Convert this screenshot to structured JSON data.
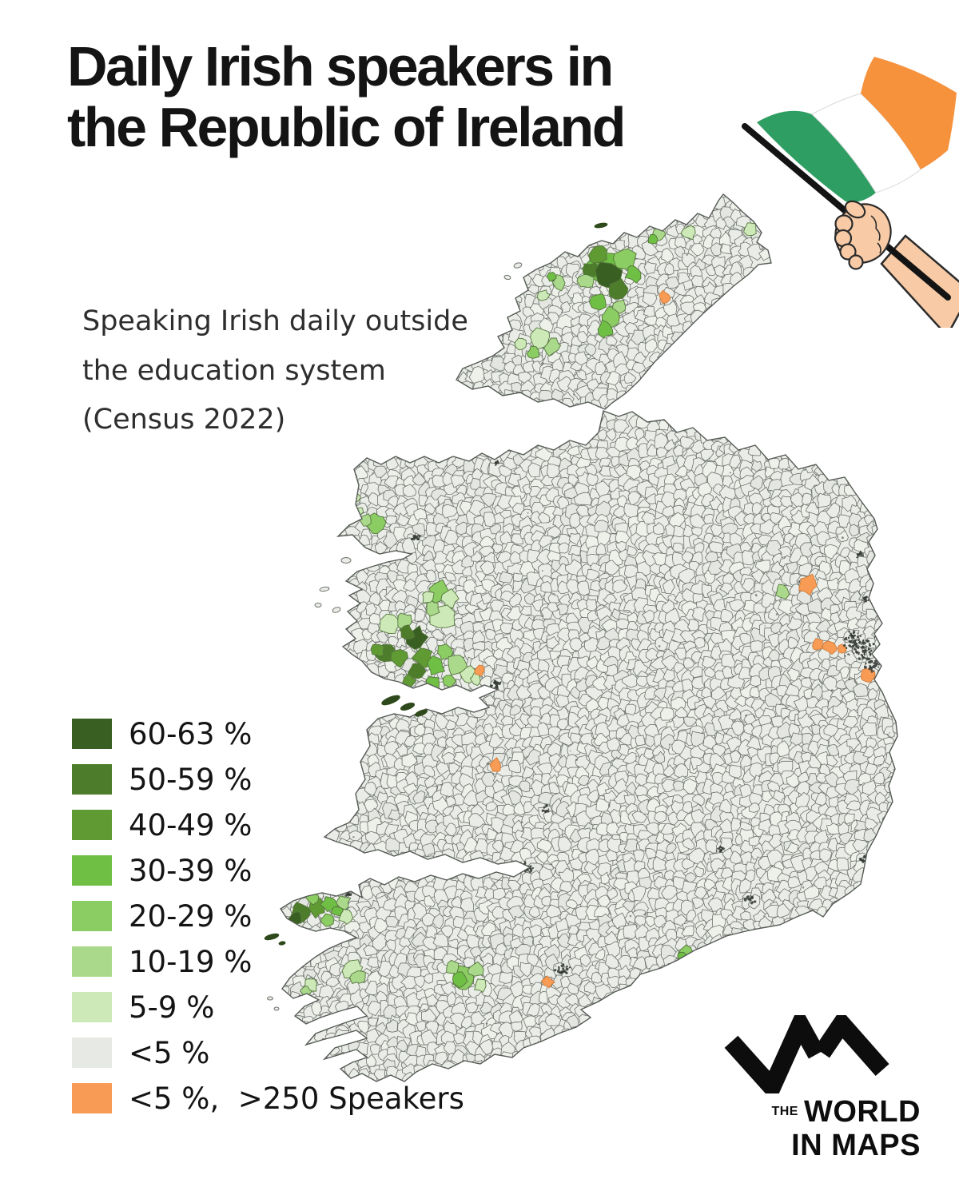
{
  "title": {
    "line1": "Daily Irish speakers in",
    "line2": "the Republic of Ireland"
  },
  "subtitle": {
    "line1": "Speaking Irish daily outside",
    "line2": "the education system",
    "line3": "(Census 2022)"
  },
  "legend": {
    "items": [
      {
        "label": "60-63 %",
        "color": "#3a5f23"
      },
      {
        "label": "50-59 %",
        "color": "#4d7d2a"
      },
      {
        "label": "40-49 %",
        "color": "#5f9a33"
      },
      {
        "label": "30-39 %",
        "color": "#6fbf45"
      },
      {
        "label": "20-29 %",
        "color": "#8bcc63"
      },
      {
        "label": "10-19 %",
        "color": "#abd98c"
      },
      {
        "label": "5-9 %",
        "color": "#cde9b8"
      },
      {
        "label": "<5 %",
        "color": "#e7e9e5"
      },
      {
        "label": "<5 %,  >250 Speakers",
        "color": "#f89b55"
      }
    ]
  },
  "map": {
    "description": "Choropleth of Irish electoral divisions, share of daily Irish speakers",
    "base_fill": "#eaece7",
    "division_border": "#6e736e",
    "coast_border": "#565b56",
    "city_speckle": "#383d38",
    "gaeltacht_island": "#2e4a1c"
  },
  "flag": {
    "green": "#2f9e62",
    "white": "#ffffff",
    "orange": "#f6913c",
    "pole": "#141414",
    "skin": "#f8cba6",
    "skin_outline": "#2b2b2b"
  },
  "logo": {
    "the": "THE",
    "world": "WORLD",
    "in_maps": "IN MAPS",
    "color": "#0d0d0d"
  }
}
